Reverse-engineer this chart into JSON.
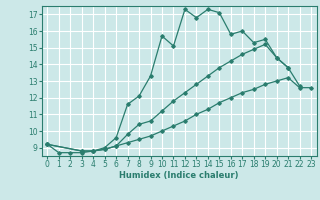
{
  "xlabel": "Humidex (Indice chaleur)",
  "ylabel": "",
  "xlim": [
    -0.5,
    23.5
  ],
  "ylim": [
    8.5,
    17.5
  ],
  "xticks": [
    0,
    1,
    2,
    3,
    4,
    5,
    6,
    7,
    8,
    9,
    10,
    11,
    12,
    13,
    14,
    15,
    16,
    17,
    18,
    19,
    20,
    21,
    22,
    23
  ],
  "yticks": [
    9,
    10,
    11,
    12,
    13,
    14,
    15,
    16,
    17
  ],
  "line_color": "#2a7d6e",
  "bg_color": "#cce8e8",
  "grid_color": "#ffffff",
  "series": [
    {
      "x": [
        0,
        1,
        2,
        3,
        4,
        5,
        6,
        7,
        8,
        9,
        10,
        11,
        12,
        13,
        14,
        15,
        16,
        17,
        18,
        19,
        20,
        21
      ],
      "y": [
        9.2,
        8.7,
        8.7,
        8.7,
        8.8,
        9.0,
        9.6,
        11.6,
        12.1,
        13.3,
        15.7,
        15.1,
        17.3,
        16.8,
        17.3,
        17.1,
        15.8,
        16.0,
        15.3,
        15.5,
        14.4,
        13.8
      ]
    },
    {
      "x": [
        0,
        3,
        4,
        5,
        6,
        7,
        8,
        9,
        10,
        11,
        12,
        13,
        14,
        15,
        16,
        17,
        18,
        19,
        20,
        21,
        22
      ],
      "y": [
        9.2,
        8.8,
        8.8,
        8.9,
        9.1,
        9.8,
        10.4,
        10.6,
        11.2,
        11.8,
        12.3,
        12.8,
        13.3,
        13.8,
        14.2,
        14.6,
        14.9,
        15.2,
        14.4,
        13.8,
        12.7
      ]
    },
    {
      "x": [
        0,
        3,
        4,
        5,
        6,
        7,
        8,
        9,
        10,
        11,
        12,
        13,
        14,
        15,
        16,
        17,
        18,
        19,
        20,
        21,
        22,
        23
      ],
      "y": [
        9.2,
        8.8,
        8.8,
        8.9,
        9.1,
        9.3,
        9.5,
        9.7,
        10.0,
        10.3,
        10.6,
        11.0,
        11.3,
        11.7,
        12.0,
        12.3,
        12.5,
        12.8,
        13.0,
        13.2,
        12.6,
        12.6
      ]
    }
  ]
}
